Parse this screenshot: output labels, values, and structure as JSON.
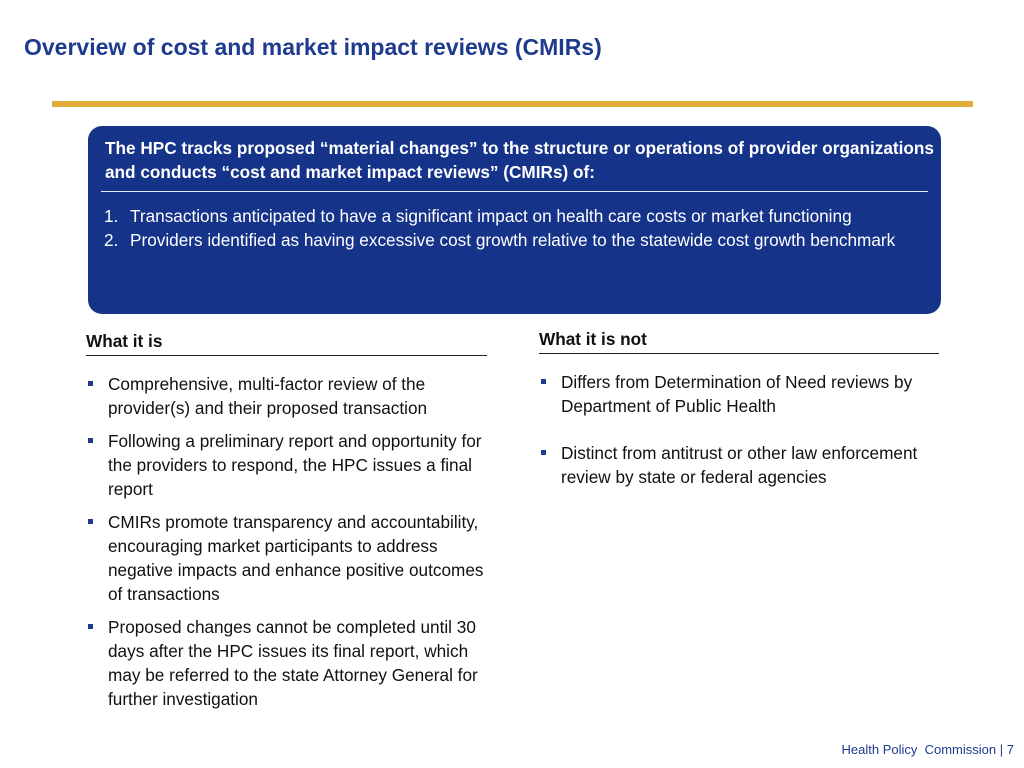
{
  "title": "Overview of cost and market impact reviews (CMIRs)",
  "summary_box": {
    "intro": "The HPC tracks proposed “material changes” to the structure or operations of provider organizations and conducts “cost and market impact reviews” (CMIRs) of:",
    "items": [
      {
        "number": "1.",
        "text": "Transactions anticipated to have a significant impact on health care costs or market functioning"
      },
      {
        "number": "2.",
        "text": "Providers identified as having excessive cost growth relative to the statewide cost growth benchmark"
      }
    ]
  },
  "what_it_is": {
    "heading": "What it is",
    "bullets": [
      "Comprehensive, multi-factor review of the provider(s) and their proposed transaction",
      "Following a preliminary report and opportunity for the providers to respond, the HPC issues a final report",
      "CMIRs promote transparency and accountability, encouraging market participants to address negative impacts and enhance positive outcomes of transactions",
      "Proposed changes cannot be completed until 30 days after the HPC issues its final report, which may be referred to the state Attorney General for further investigation"
    ]
  },
  "what_it_is_not": {
    "heading": "What it is not",
    "bullets": [
      "Differs from Determination of Need reviews by Department of Public Health",
      "Distinct from antitrust or other law enforcement review by state or federal agencies"
    ]
  },
  "footer": {
    "org": "Health Policy  Commission",
    "separator": "|",
    "page_number": "7"
  },
  "colors": {
    "title_blue": "#1f3b8f",
    "box_navy": "#16338a",
    "gold_rule": "#e1ab3a"
  }
}
